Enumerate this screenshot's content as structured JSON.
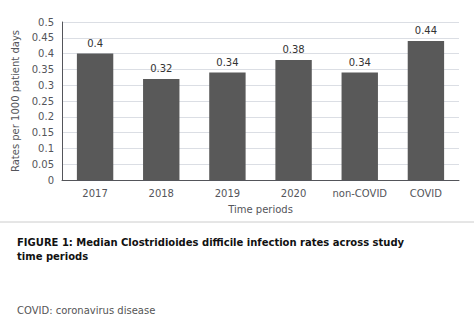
{
  "chart_data": {
    "type": "bar",
    "title": "FIGURE 1: Median Clostridioides difficile infection rates across study\ntime periods",
    "annotations": [
      "COVID: coronavirus disease"
    ],
    "xlabel": "Time periods",
    "ylabel": "Rates per 1000 patient days",
    "categories": [
      "2017",
      "2018",
      "2019",
      "2020",
      "non-COVID",
      "COVID"
    ],
    "values": [
      0.4,
      0.32,
      0.34,
      0.38,
      0.34,
      0.44
    ],
    "color": "#595959",
    "ylim": [
      0,
      0.5
    ],
    "yticks": [
      0,
      0.05,
      0.1,
      0.15,
      0.2,
      0.25,
      0.3,
      0.35,
      0.4,
      0.45,
      0.5
    ],
    "grid": true,
    "data_labels": true
  }
}
